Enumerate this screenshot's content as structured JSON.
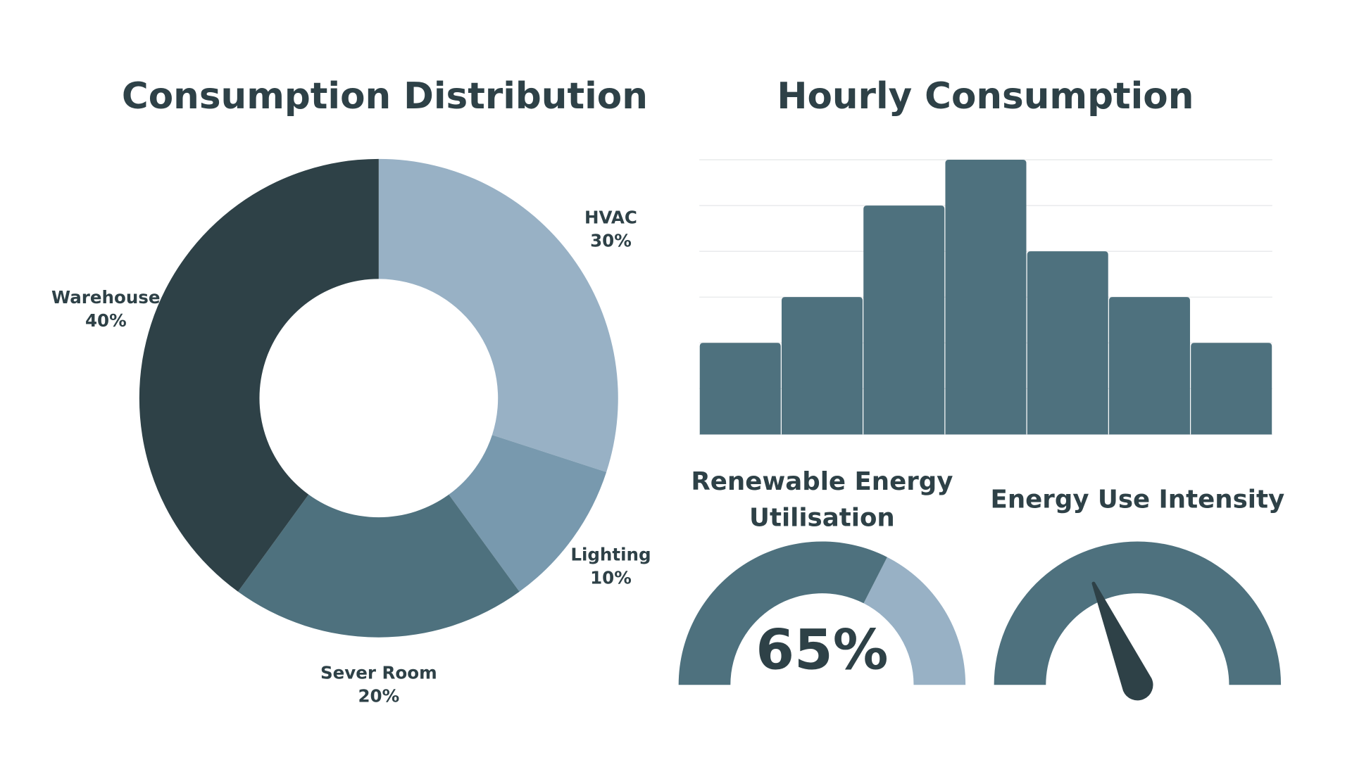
{
  "chart_data": [
    {
      "type": "pie",
      "title": "Consumption Distribution",
      "categories": [
        "HVAC",
        "Lighting",
        "Sever Room",
        "Warehouse"
      ],
      "values": [
        30,
        10,
        20,
        40
      ],
      "value_labels": [
        "30%",
        "10%",
        "20%",
        "40%"
      ],
      "colors": [
        "#98b1c5",
        "#7899ae",
        "#4e717e",
        "#2e4147"
      ]
    },
    {
      "type": "bar",
      "title": "Hourly Consumption",
      "categories": [
        null,
        null,
        null,
        null,
        null,
        null,
        null
      ],
      "values": [
        2,
        3,
        5,
        6,
        4,
        3,
        2
      ],
      "color": "#4e717e",
      "ylim": [
        0,
        6
      ],
      "yticks": [
        0,
        1,
        2,
        3,
        4,
        5,
        6
      ],
      "grid": true
    },
    {
      "type": "gauge",
      "title": "Renewable Energy Utilisation",
      "value": 65,
      "value_label": "65%",
      "ylim": [
        0,
        100
      ],
      "color": "#4e717e",
      "track_color": "#98b1c5"
    },
    {
      "type": "gauge",
      "title": "Energy Use Intensity",
      "value": 37,
      "ylim": [
        0,
        100
      ],
      "color": "#4e717e",
      "needle_color": "#2e4147"
    }
  ]
}
